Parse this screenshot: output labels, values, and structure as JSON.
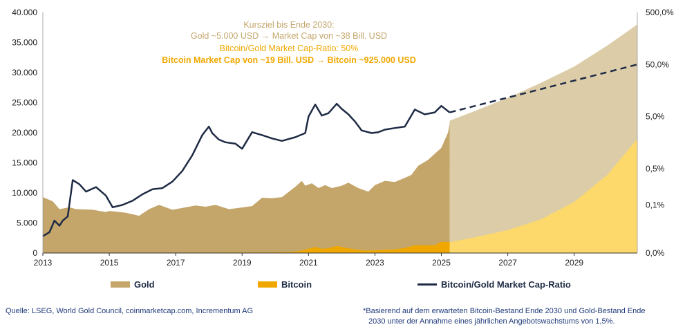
{
  "chart_data": {
    "type": "area",
    "annotation": {
      "line1": "Kursziel bis Ende 2030:",
      "line2": "Gold ~5.000 USD → Market Cap von ~38 Bill. USD",
      "line3": "Bitcoin/Gold Market Cap-Ratio: 50%",
      "line4": "Bitcoin Market Cap von ~19 Bill. USD → Bitcoin ~925.000 USD"
    },
    "x_ticks": [
      "2013",
      "2015",
      "2017",
      "2019",
      "2021",
      "2023",
      "2025",
      "2027",
      "2029"
    ],
    "xlim": [
      2013,
      2030.9
    ],
    "y_left": {
      "ticks": [
        "0",
        "5.000",
        "10.000",
        "15.000",
        "20.000",
        "25.000",
        "30.000",
        "35.000",
        "40.000"
      ],
      "ylim": [
        0,
        40000
      ]
    },
    "y_right": {
      "scale": "log",
      "ticks": [
        "0,0%",
        "0,1%",
        "0,5%",
        "5,0%",
        "50,0%",
        "500,0%"
      ],
      "tick_values": [
        0.0,
        0.1,
        0.5,
        5.0,
        50.0,
        500.0
      ]
    },
    "legend": [
      "Gold",
      "Bitcoin",
      "Bitcoin/Gold Market Cap-Ratio"
    ],
    "colors": {
      "gold": "#c4a66b",
      "gold_projection": "#dccda8",
      "bitcoin": "#f0a800",
      "bitcoin_projection": "#fcd96a",
      "ratio": "#1f2b45",
      "annotation_gold": "#c4a66b",
      "annotation_bitcoin": "#f0a800"
    },
    "series": [
      {
        "name": "Gold",
        "axis": "left",
        "points": [
          [
            2013.0,
            9300
          ],
          [
            2013.3,
            8600
          ],
          [
            2013.5,
            7300
          ],
          [
            2013.8,
            7600
          ],
          [
            2014.0,
            7300
          ],
          [
            2014.5,
            7200
          ],
          [
            2014.9,
            6800
          ],
          [
            2015.0,
            7000
          ],
          [
            2015.5,
            6700
          ],
          [
            2015.9,
            6200
          ],
          [
            2016.2,
            7300
          ],
          [
            2016.5,
            8000
          ],
          [
            2016.9,
            7200
          ],
          [
            2017.2,
            7500
          ],
          [
            2017.6,
            7900
          ],
          [
            2017.9,
            7700
          ],
          [
            2018.2,
            8000
          ],
          [
            2018.6,
            7300
          ],
          [
            2018.9,
            7500
          ],
          [
            2019.3,
            7800
          ],
          [
            2019.6,
            9200
          ],
          [
            2019.9,
            9100
          ],
          [
            2020.2,
            9300
          ],
          [
            2020.6,
            11000
          ],
          [
            2020.8,
            12000
          ],
          [
            2020.9,
            11200
          ],
          [
            2021.1,
            11600
          ],
          [
            2021.3,
            10800
          ],
          [
            2021.5,
            11300
          ],
          [
            2021.7,
            10800
          ],
          [
            2022.0,
            11200
          ],
          [
            2022.2,
            11700
          ],
          [
            2022.5,
            10800
          ],
          [
            2022.8,
            10200
          ],
          [
            2023.0,
            11300
          ],
          [
            2023.3,
            12000
          ],
          [
            2023.6,
            11800
          ],
          [
            2023.9,
            12500
          ],
          [
            2024.1,
            13000
          ],
          [
            2024.3,
            14500
          ],
          [
            2024.6,
            15500
          ],
          [
            2024.8,
            16500
          ],
          [
            2025.0,
            17500
          ],
          [
            2025.2,
            20000
          ],
          [
            2025.25,
            21500
          ]
        ]
      },
      {
        "name": "Bitcoin",
        "axis": "left",
        "points": [
          [
            2013.0,
            0
          ],
          [
            2020.0,
            100
          ],
          [
            2020.4,
            150
          ],
          [
            2020.7,
            300
          ],
          [
            2021.0,
            700
          ],
          [
            2021.2,
            1000
          ],
          [
            2021.4,
            700
          ],
          [
            2021.6,
            800
          ],
          [
            2021.85,
            1200
          ],
          [
            2022.1,
            900
          ],
          [
            2022.4,
            600
          ],
          [
            2022.7,
            400
          ],
          [
            2023.0,
            450
          ],
          [
            2023.3,
            550
          ],
          [
            2023.6,
            600
          ],
          [
            2023.9,
            850
          ],
          [
            2024.2,
            1300
          ],
          [
            2024.5,
            1300
          ],
          [
            2024.8,
            1300
          ],
          [
            2025.0,
            1900
          ],
          [
            2025.25,
            1800
          ]
        ]
      },
      {
        "name": "Bitcoin/Gold Market Cap-Ratio",
        "axis": "right",
        "unit": "%",
        "points": [
          [
            2013.0,
            0.025
          ],
          [
            2013.2,
            0.03
          ],
          [
            2013.35,
            0.05
          ],
          [
            2013.5,
            0.04
          ],
          [
            2013.6,
            0.05
          ],
          [
            2013.75,
            0.06
          ],
          [
            2013.9,
            0.3
          ],
          [
            2014.1,
            0.25
          ],
          [
            2014.3,
            0.18
          ],
          [
            2014.6,
            0.22
          ],
          [
            2014.9,
            0.15
          ],
          [
            2015.1,
            0.09
          ],
          [
            2015.4,
            0.1
          ],
          [
            2015.7,
            0.12
          ],
          [
            2016.0,
            0.16
          ],
          [
            2016.3,
            0.2
          ],
          [
            2016.6,
            0.21
          ],
          [
            2016.9,
            0.28
          ],
          [
            2017.2,
            0.45
          ],
          [
            2017.5,
            0.9
          ],
          [
            2017.8,
            2.2
          ],
          [
            2018.0,
            3.2
          ],
          [
            2018.1,
            2.4
          ],
          [
            2018.3,
            1.8
          ],
          [
            2018.5,
            1.6
          ],
          [
            2018.8,
            1.5
          ],
          [
            2019.0,
            1.2
          ],
          [
            2019.3,
            2.5
          ],
          [
            2019.6,
            2.2
          ],
          [
            2019.9,
            1.9
          ],
          [
            2020.2,
            1.7
          ],
          [
            2020.6,
            2.0
          ],
          [
            2020.9,
            2.4
          ],
          [
            2021.0,
            5.0
          ],
          [
            2021.2,
            8.5
          ],
          [
            2021.4,
            5.2
          ],
          [
            2021.6,
            5.8
          ],
          [
            2021.85,
            8.8
          ],
          [
            2022.0,
            7.0
          ],
          [
            2022.2,
            5.5
          ],
          [
            2022.4,
            4.0
          ],
          [
            2022.6,
            2.7
          ],
          [
            2022.9,
            2.4
          ],
          [
            2023.1,
            2.5
          ],
          [
            2023.3,
            2.8
          ],
          [
            2023.6,
            3.0
          ],
          [
            2023.9,
            3.2
          ],
          [
            2024.2,
            6.8
          ],
          [
            2024.5,
            5.5
          ],
          [
            2024.8,
            6.0
          ],
          [
            2025.0,
            8.0
          ],
          [
            2025.25,
            6.0
          ]
        ]
      },
      {
        "name": "Gold projection",
        "axis": "left",
        "points": [
          [
            2025.25,
            22000
          ],
          [
            2026.0,
            23600
          ],
          [
            2027.0,
            25800
          ],
          [
            2028.0,
            28300
          ],
          [
            2029.0,
            31000
          ],
          [
            2030.0,
            34500
          ],
          [
            2030.9,
            38000
          ]
        ]
      },
      {
        "name": "Bitcoin projection",
        "axis": "left",
        "points": [
          [
            2025.25,
            1800
          ],
          [
            2026.0,
            2600
          ],
          [
            2027.0,
            3800
          ],
          [
            2028.0,
            5600
          ],
          [
            2029.0,
            8500
          ],
          [
            2030.0,
            13000
          ],
          [
            2030.9,
            19000
          ]
        ]
      },
      {
        "name": "Ratio projection",
        "axis": "right",
        "unit": "%",
        "points": [
          [
            2025.25,
            6.0
          ],
          [
            2030.9,
            50.0
          ]
        ]
      }
    ]
  },
  "legend": {
    "gold": "Gold",
    "bitcoin": "Bitcoin",
    "ratio": "Bitcoin/Gold Market Cap-Ratio"
  },
  "footer": {
    "source": "Quelle: LSEG, World Gold Council, coinmarketcap.com, Incrementum AG",
    "note_line1": "*Basierend auf dem erwarteten Bitcoin-Bestand Ende 2030 und Gold-Bestand Ende",
    "note_line2": "2030 unter der Annahme eines jährlichen Angebotswachstums von 1,5%."
  }
}
